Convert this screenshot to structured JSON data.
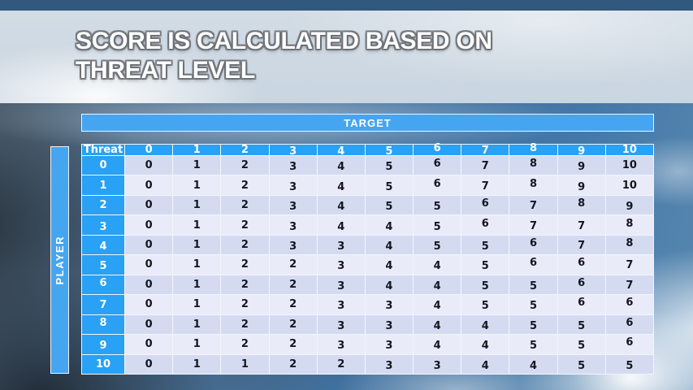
{
  "slide": {
    "title_line1": "SCORE IS CALCULATED BASED ON",
    "title_line2": "THREAT LEVEL"
  },
  "matrix": {
    "target_label": "TARGET",
    "player_label": "PLAYER",
    "corner_label": "Threat",
    "column_headers": [
      "0",
      "1",
      "2",
      "3",
      "4",
      "5",
      "6",
      "7",
      "8",
      "9",
      "10"
    ],
    "rows": [
      {
        "threat": "0",
        "values": [
          "0",
          "1",
          "2",
          "3",
          "4",
          "5",
          "6",
          "7",
          "8",
          "9",
          "10"
        ]
      },
      {
        "threat": "1",
        "values": [
          "0",
          "1",
          "2",
          "3",
          "4",
          "5",
          "6",
          "7",
          "8",
          "9",
          "10"
        ]
      },
      {
        "threat": "2",
        "values": [
          "0",
          "1",
          "2",
          "3",
          "4",
          "5",
          "5",
          "6",
          "7",
          "8",
          "9"
        ]
      },
      {
        "threat": "3",
        "values": [
          "0",
          "1",
          "2",
          "3",
          "4",
          "4",
          "5",
          "6",
          "7",
          "7",
          "8"
        ]
      },
      {
        "threat": "4",
        "values": [
          "0",
          "1",
          "2",
          "3",
          "3",
          "4",
          "5",
          "5",
          "6",
          "7",
          "8"
        ]
      },
      {
        "threat": "5",
        "values": [
          "0",
          "1",
          "2",
          "2",
          "3",
          "4",
          "4",
          "5",
          "6",
          "6",
          "7"
        ]
      },
      {
        "threat": "6",
        "values": [
          "0",
          "1",
          "2",
          "2",
          "3",
          "4",
          "4",
          "5",
          "5",
          "6",
          "7"
        ]
      },
      {
        "threat": "7",
        "values": [
          "0",
          "1",
          "2",
          "2",
          "3",
          "3",
          "4",
          "5",
          "5",
          "6",
          "6"
        ]
      },
      {
        "threat": "8",
        "values": [
          "0",
          "1",
          "2",
          "2",
          "3",
          "3",
          "4",
          "4",
          "5",
          "5",
          "6"
        ]
      },
      {
        "threat": "9",
        "values": [
          "0",
          "1",
          "2",
          "2",
          "3",
          "3",
          "4",
          "4",
          "5",
          "5",
          "6"
        ]
      },
      {
        "threat": "10",
        "values": [
          "0",
          "1",
          "1",
          "2",
          "2",
          "3",
          "3",
          "4",
          "4",
          "5",
          "5"
        ]
      }
    ]
  },
  "colors": {
    "cell_blue": "#29a1f4",
    "bar_blue": "#46a5f0",
    "row_band_dark": "#d4dbf1",
    "row_band_light": "#e9ecf8",
    "cell_text": "#15151e",
    "grid_white": "#f2f6fa",
    "top_strip_blue": "#31587d"
  }
}
